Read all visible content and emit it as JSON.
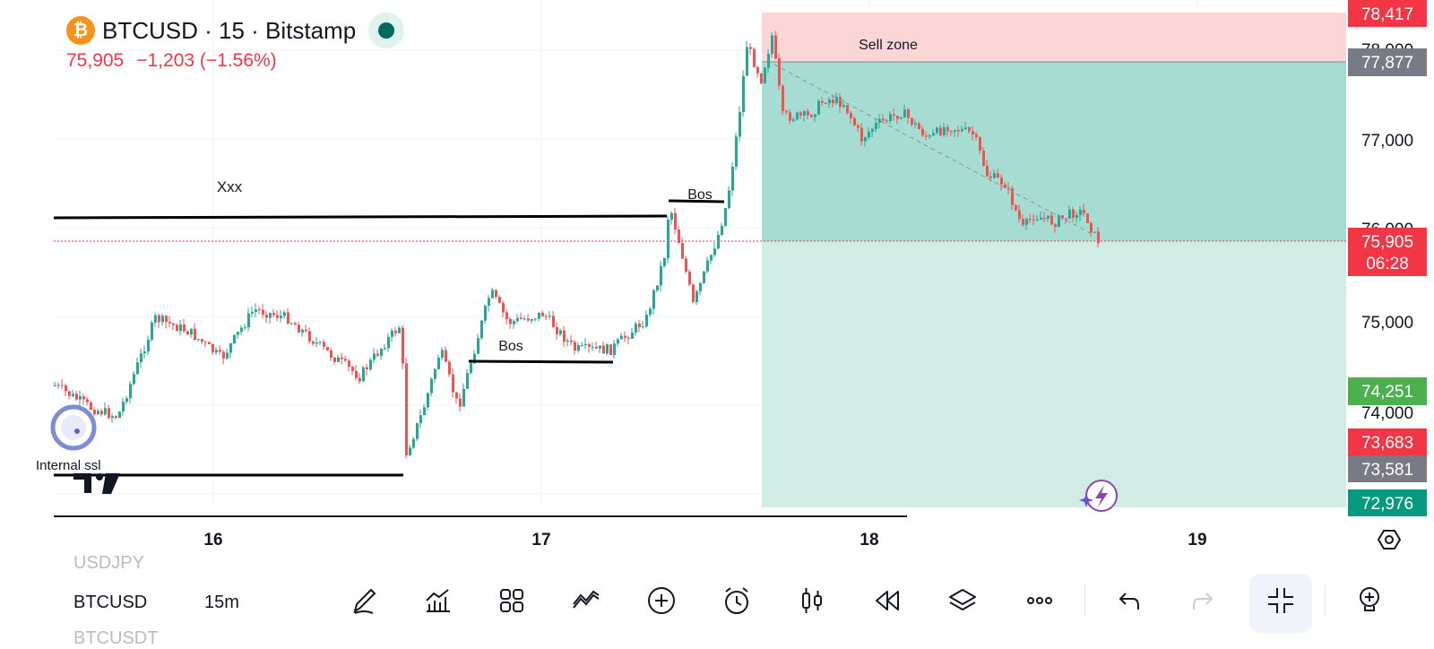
{
  "header": {
    "coin_glyph": "₿",
    "title": "BTCUSD · 15 · Bitstamp",
    "price": "75,905",
    "change": "−1,203 (−1.56%)"
  },
  "chart": {
    "price_scale": [
      "78,000",
      "77,000",
      "76,000",
      "75,000",
      "74,000"
    ],
    "time_scale": [
      "16",
      "17",
      "18",
      "19"
    ],
    "price_tags": {
      "sell_top": "78,417",
      "sell_entry": "77,877",
      "last_price": "75,905",
      "countdown": "06:28",
      "tp_green": "74,251",
      "red_level": "73,683",
      "grey_level": "73,581",
      "bottom_level": "72,976"
    },
    "annotations": {
      "xxx": "Xxx",
      "bos_upper": "Bos",
      "bos_lower": "Bos",
      "internal_ssl": "Internal ssl",
      "sell_zone": "Sell zone"
    },
    "colors": {
      "up": "#26a69a",
      "down": "#ef5350",
      "sell_zone": "#fbd6d6",
      "profit_zone": "#a7dcd3",
      "profit_zone_light": "#d1ebe5"
    }
  },
  "bottom": {
    "symbols_ghost_above": "USDJPY",
    "current_symbol": "BTCUSD",
    "current_timeframe": "15m",
    "symbols_ghost_below": "BTCUSDT"
  }
}
